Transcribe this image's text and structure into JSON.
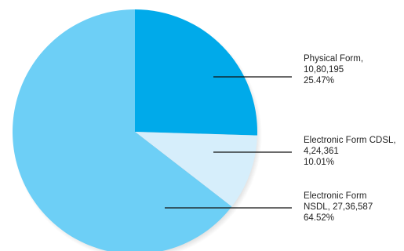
{
  "chart_data": {
    "type": "pie",
    "slices": [
      {
        "name": "Physical Form",
        "value": 1080195,
        "percent": 25.47,
        "color": "#00aaea",
        "label_lines": [
          "Physical Form,",
          "10,80,195",
          "25.47%"
        ]
      },
      {
        "name": "Electronic Form CDSL",
        "value": 424361,
        "percent": 10.01,
        "color": "#d6eefb",
        "label_lines": [
          "Electronic Form CDSL,",
          "4,24,361",
          "10.01%"
        ]
      },
      {
        "name": "Electronic Form NSDL",
        "value": 2736587,
        "percent": 64.52,
        "color": "#6dcff6",
        "label_lines": [
          "Electronic Form",
          "NSDL, 27,36,587",
          "64.52%"
        ]
      }
    ],
    "start_angle_deg": 0,
    "direction": "clockwise",
    "shadow": true,
    "leader_lines": true
  }
}
